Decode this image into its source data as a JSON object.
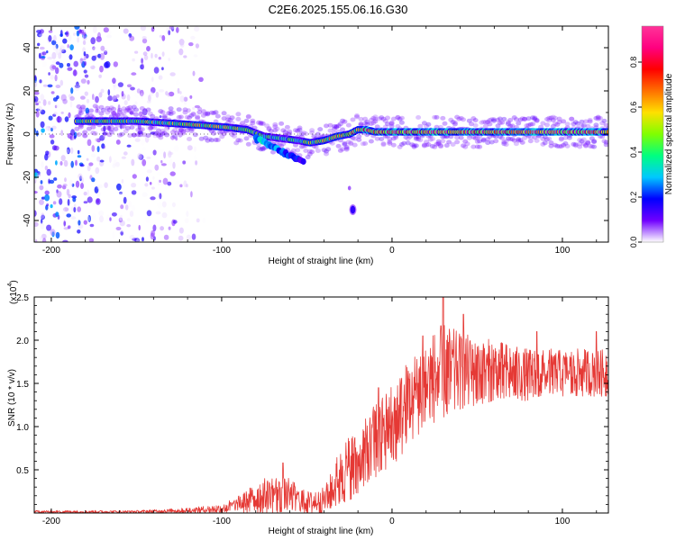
{
  "title": "C2E6.2025.155.06.16.G30",
  "chart_data": [
    {
      "type": "heatmap",
      "title": "C2E6.2025.155.06.16.G30",
      "xlabel": "Height of straight line (km)",
      "ylabel": "Frequency (Hz)",
      "xlim": [
        -210,
        127
      ],
      "ylim": [
        -50,
        50
      ],
      "xticks": [
        -200,
        -100,
        0,
        100
      ],
      "yticks": [
        40,
        20,
        0,
        -20,
        -40
      ],
      "colorbar": {
        "label": "Normalized spectral amplitude",
        "range": [
          0,
          0.96
        ],
        "ticks": [
          0.0,
          0.2,
          0.4,
          0.6,
          0.8
        ],
        "stops": [
          "#ffffff",
          "#7000ff",
          "#0000ff",
          "#00c8ff",
          "#00ff80",
          "#80ff00",
          "#ffe000",
          "#ff7000",
          "#ff0000",
          "#ff0080",
          "#ff3399"
        ]
      },
      "ridge": {
        "name": "dominant frequency track",
        "x": [
          -185,
          -170,
          -150,
          -130,
          -110,
          -95,
          -85,
          -75,
          -65,
          -55,
          -48,
          -40,
          -32,
          -25,
          -20,
          -15,
          -10,
          0,
          20,
          40,
          60,
          80,
          100,
          120,
          127
        ],
        "y": [
          6,
          6,
          6,
          5,
          4,
          3,
          2,
          -1,
          -2,
          -3,
          -4,
          -3,
          -1,
          0,
          2,
          2,
          1,
          1,
          1,
          1,
          1,
          1,
          1,
          1,
          1
        ],
        "amplitude": [
          0.55,
          0.55,
          0.5,
          0.55,
          0.6,
          0.55,
          0.45,
          0.45,
          0.4,
          0.45,
          0.55,
          0.6,
          0.6,
          0.6,
          0.7,
          0.75,
          0.75,
          0.8,
          0.85,
          0.9,
          0.8,
          0.85,
          0.85,
          0.85,
          0.8
        ]
      },
      "branch": {
        "name": "descending branch",
        "x": [
          -80,
          -70,
          -60,
          -52
        ],
        "y": [
          -2,
          -6,
          -10,
          -13
        ],
        "amplitude": [
          0.3,
          0.25,
          0.2,
          0.15
        ]
      },
      "blob": {
        "x": -23,
        "y": -35,
        "amplitude": 0.15
      },
      "noise_region": {
        "x_range": [
          -210,
          -110
        ],
        "amplitude_max": 0.3
      }
    },
    {
      "type": "line",
      "xlabel": "Height of straight line (km)",
      "ylabel": "SNR (10 * v/v)",
      "exponent_label": "(x10",
      "exponent_power": "4",
      "exponent_close": ")",
      "xlim": [
        -210,
        127
      ],
      "ylim": [
        0,
        2.5
      ],
      "xticks": [
        -200,
        -100,
        0,
        100
      ],
      "yticks": [
        0.5,
        1.0,
        1.5,
        2.0,
        2.5
      ],
      "ytick_labels": [
        "0.5",
        "1.0",
        "1.5",
        "2.0",
        "2.5"
      ],
      "series": [
        {
          "name": "SNR",
          "color": "#e53935",
          "envelope_x": [
            -210,
            -150,
            -120,
            -100,
            -90,
            -80,
            -70,
            -60,
            -50,
            -40,
            -35,
            -30,
            -25,
            -20,
            -15,
            -10,
            0,
            10,
            20,
            30,
            40,
            60,
            80,
            100,
            127
          ],
          "envelope_lo": [
            0.0,
            0.0,
            0.0,
            0.0,
            0.0,
            0.0,
            0.0,
            0.0,
            0.0,
            0.0,
            0.05,
            0.1,
            0.15,
            0.2,
            0.3,
            0.4,
            0.5,
            0.8,
            1.0,
            1.1,
            1.2,
            1.3,
            1.3,
            1.35,
            1.35
          ],
          "envelope_hi": [
            0.03,
            0.03,
            0.06,
            0.1,
            0.2,
            0.35,
            0.45,
            0.4,
            0.25,
            0.3,
            0.5,
            0.8,
            0.9,
            1.0,
            1.1,
            1.3,
            1.5,
            1.8,
            2.0,
            2.2,
            2.1,
            2.0,
            1.9,
            1.9,
            1.9
          ],
          "peaks": [
            {
              "x": -64,
              "y": 0.58
            },
            {
              "x": -8,
              "y": 1.45
            },
            {
              "x": 10,
              "y": 1.55
            },
            {
              "x": 18,
              "y": 2.05
            },
            {
              "x": 30,
              "y": 2.55
            },
            {
              "x": 42,
              "y": 2.3
            },
            {
              "x": 85,
              "y": 2.1
            },
            {
              "x": 120,
              "y": 2.1
            }
          ]
        }
      ]
    }
  ]
}
